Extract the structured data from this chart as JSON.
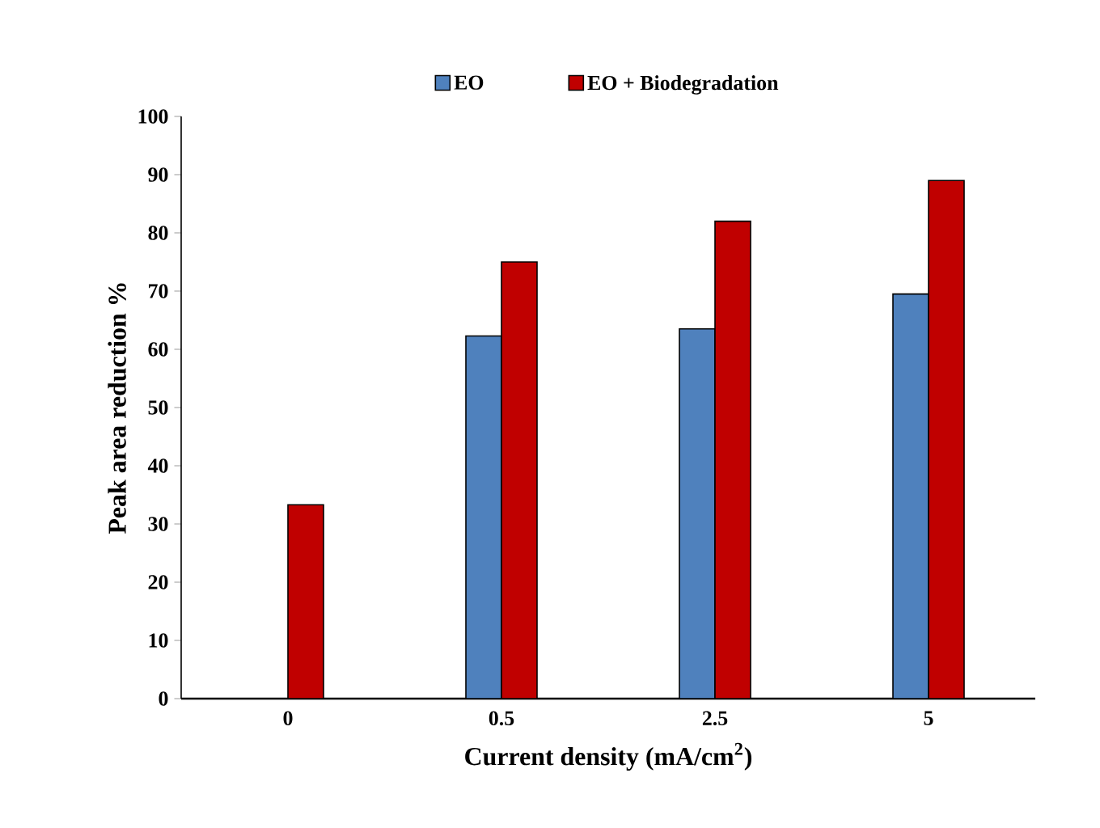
{
  "chart_data": {
    "type": "bar",
    "xlabel": "Current density (mA/cm$^{2}$)",
    "ylabel": "Peak area reduction %",
    "categories": [
      "0",
      "0.5",
      "2.5",
      "5"
    ],
    "series": [
      {
        "name": "EO",
        "color": "#4f81bd",
        "values": [
          null,
          62.3,
          63.5,
          69.5
        ]
      },
      {
        "name": "EO + Biodegradation",
        "color": "#c00000",
        "values": [
          33.3,
          75,
          82,
          89
        ]
      }
    ],
    "ylim": [
      0,
      100
    ],
    "yticks": [
      0,
      10,
      20,
      30,
      40,
      50,
      60,
      70,
      80,
      90,
      100
    ],
    "grid": false,
    "legend": "top"
  }
}
